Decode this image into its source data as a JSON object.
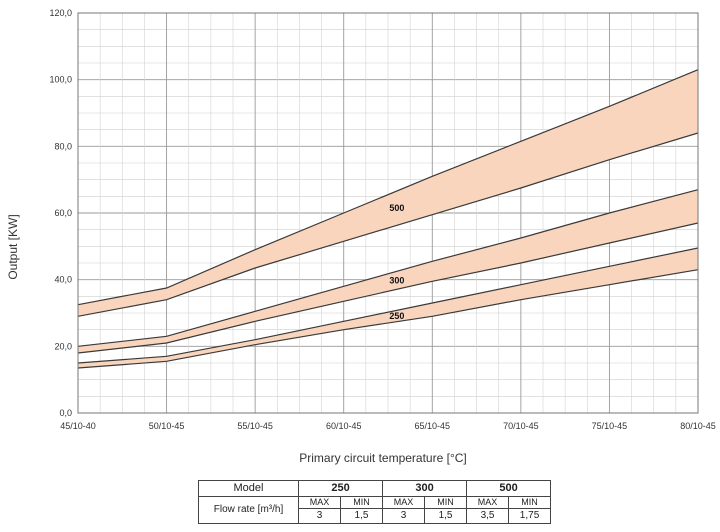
{
  "chart_data": {
    "type": "area",
    "categories": [
      "45/10-40",
      "50/10-45",
      "55/10-45",
      "60/10-45",
      "65/10-45",
      "70/10-45",
      "75/10-45",
      "80/10-45"
    ],
    "xlabel": "Primary circuit temperature [°C]",
    "ylabel": "Output [KW]",
    "ylim": [
      0,
      120
    ],
    "yticks": [
      "0,0",
      "20,0",
      "40,0",
      "60,0",
      "80,0",
      "100,0",
      "120,0"
    ],
    "grid": true,
    "series": [
      {
        "name": "500",
        "max": [
          32.5,
          37.5,
          49,
          60,
          71,
          81.5,
          92,
          103
        ],
        "min": [
          29,
          34,
          43.5,
          51.5,
          59.5,
          67.5,
          76,
          84
        ]
      },
      {
        "name": "300",
        "max": [
          20,
          23,
          30.5,
          38,
          45.5,
          52.5,
          60,
          67
        ],
        "min": [
          18,
          21,
          27.5,
          33.5,
          39.5,
          45,
          51,
          57
        ]
      },
      {
        "name": "250",
        "max": [
          15,
          17,
          22,
          27.5,
          33,
          38.5,
          44,
          49.5
        ],
        "min": [
          13.5,
          15.5,
          20.5,
          25,
          29,
          34,
          38.5,
          43
        ]
      }
    ],
    "band_fill": "#f9d5bd",
    "band_stroke": "#3a3a3a"
  },
  "table": {
    "model_label": "Model",
    "flow_label": "Flow rate [m³/h]",
    "models": [
      {
        "name": "250",
        "max_label": "MAX",
        "min_label": "MIN",
        "max": "3",
        "min": "1,5"
      },
      {
        "name": "300",
        "max_label": "MAX",
        "min_label": "MIN",
        "max": "3",
        "min": "1,5"
      },
      {
        "name": "500",
        "max_label": "MAX",
        "min_label": "MIN",
        "max": "3,5",
        "min": "1,75"
      }
    ]
  }
}
